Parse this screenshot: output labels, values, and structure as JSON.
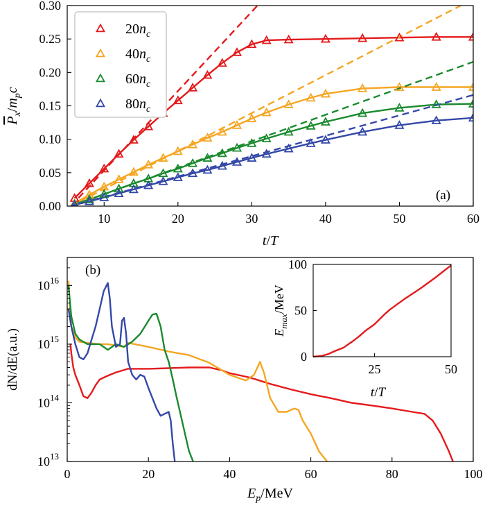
{
  "chart_data": [
    {
      "type": "scatter",
      "panel_label": "(a)",
      "xlabel": "t/T",
      "ylabel": "Px/mpc",
      "xlim": [
        5,
        60
      ],
      "ylim": [
        0,
        0.3
      ],
      "xticks": [
        10,
        20,
        30,
        40,
        50,
        60
      ],
      "yticks": [
        "0.00",
        "0.05",
        "0.10",
        "0.15",
        "0.20",
        "0.25",
        "0.30"
      ],
      "legend_position": "top-left",
      "colors": {
        "20nc": "#e41a1c",
        "40nc": "#f5a623",
        "60nc": "#1a8a2e",
        "80nc": "#3448a8"
      },
      "series": [
        {
          "name": "20nc",
          "label_num": "20",
          "label_sub": "c",
          "color": "#e41a1c",
          "fit_slope": 0.01187,
          "x": [
            6,
            8,
            10,
            12,
            14,
            16,
            18,
            20,
            22,
            24,
            26,
            28,
            30,
            32,
            35,
            40,
            45,
            50,
            55,
            60
          ],
          "y": [
            0.012,
            0.034,
            0.056,
            0.078,
            0.099,
            0.119,
            0.139,
            0.158,
            0.177,
            0.196,
            0.214,
            0.23,
            0.242,
            0.248,
            0.249,
            0.25,
            0.251,
            0.252,
            0.253,
            0.253
          ]
        },
        {
          "name": "40nc",
          "label_num": "40",
          "label_sub": "c",
          "color": "#f5a623",
          "fit_slope": 0.00568,
          "x": [
            6,
            8,
            10,
            12,
            14,
            16,
            18,
            20,
            22,
            24,
            26,
            28,
            30,
            32,
            35,
            38,
            40,
            45,
            50,
            55,
            60
          ],
          "y": [
            0.004,
            0.017,
            0.029,
            0.04,
            0.051,
            0.062,
            0.072,
            0.082,
            0.092,
            0.102,
            0.111,
            0.121,
            0.131,
            0.14,
            0.152,
            0.162,
            0.168,
            0.176,
            0.178,
            0.178,
            0.178
          ]
        },
        {
          "name": "60nc",
          "label_num": "60",
          "label_sub": "c",
          "color": "#1a8a2e",
          "fit_slope": 0.00396,
          "x": [
            6,
            8,
            10,
            12,
            14,
            16,
            18,
            20,
            22,
            24,
            26,
            28,
            30,
            32,
            35,
            38,
            40,
            45,
            50,
            55,
            60
          ],
          "y": [
            0.003,
            0.01,
            0.018,
            0.026,
            0.034,
            0.041,
            0.049,
            0.056,
            0.064,
            0.072,
            0.079,
            0.087,
            0.094,
            0.101,
            0.111,
            0.12,
            0.126,
            0.139,
            0.147,
            0.152,
            0.153
          ]
        },
        {
          "name": "80nc",
          "label_num": "80",
          "label_sub": "c",
          "color": "#3448a8",
          "fit_slope": 0.00305,
          "x": [
            6,
            8,
            10,
            12,
            14,
            16,
            18,
            20,
            22,
            24,
            26,
            28,
            30,
            32,
            35,
            38,
            40,
            45,
            50,
            55,
            60
          ],
          "y": [
            0.002,
            0.007,
            0.013,
            0.019,
            0.025,
            0.031,
            0.037,
            0.043,
            0.049,
            0.054,
            0.06,
            0.066,
            0.072,
            0.078,
            0.086,
            0.094,
            0.099,
            0.111,
            0.121,
            0.128,
            0.132
          ]
        }
      ]
    },
    {
      "type": "line",
      "panel_label": "(b)",
      "xlabel": "Ep/MeV",
      "ylabel": "dN/dE(a.u.)",
      "xlim": [
        0,
        100
      ],
      "ylim": [
        10000000000000.0,
        3e+16
      ],
      "log_y": true,
      "xticks": [
        0,
        20,
        40,
        60,
        80,
        100
      ],
      "yticks_exp": [
        13,
        14,
        15,
        16
      ],
      "series": [
        {
          "name": "20nc",
          "color": "#e41a1c",
          "x": [
            0.8,
            1,
            1.5,
            2,
            3,
            4,
            5,
            6,
            7,
            8,
            10,
            12,
            15,
            20,
            25,
            30,
            35,
            38,
            40,
            45,
            50,
            55,
            60,
            65,
            70,
            75,
            80,
            85,
            88,
            90,
            92,
            94,
            95
          ],
          "y": [
            1000000000000000.0,
            700000000000000.0,
            400000000000000.0,
            300000000000000.0,
            200000000000000.0,
            130000000000000.0,
            120000000000000.0,
            150000000000000.0,
            200000000000000.0,
            250000000000000.0,
            290000000000000.0,
            330000000000000.0,
            380000000000000.0,
            380000000000000.0,
            390000000000000.0,
            400000000000000.0,
            400000000000000.0,
            360000000000000.0,
            320000000000000.0,
            270000000000000.0,
            210000000000000.0,
            170000000000000.0,
            140000000000000.0,
            120000000000000.0,
            100000000000000.0,
            90000000000000.0,
            80000000000000.0,
            70000000000000.0,
            65000000000000.0,
            50000000000000.0,
            30000000000000.0,
            15000000000000.0,
            10000000000000.0
          ]
        },
        {
          "name": "40nc",
          "color": "#f5a623",
          "x": [
            0.3,
            1,
            2,
            3,
            5,
            8,
            10,
            12,
            14,
            15,
            20,
            25,
            30,
            35,
            40,
            44,
            46,
            47.5,
            48.5,
            50,
            52,
            54,
            56,
            57,
            58,
            60,
            62,
            64
          ],
          "y": [
            1.2e+16,
            2000000000000000.0,
            1300000000000000.0,
            1100000000000000.0,
            1050000000000000.0,
            1000000000000000.0,
            1000000000000000.0,
            950000000000000.0,
            900000000000000.0,
            1050000000000000.0,
            900000000000000.0,
            750000000000000.0,
            650000000000000.0,
            480000000000000.0,
            300000000000000.0,
            240000000000000.0,
            300000000000000.0,
            500000000000000.0,
            320000000000000.0,
            120000000000000.0,
            70000000000000.0,
            70000000000000.0,
            80000000000000.0,
            75000000000000.0,
            50000000000000.0,
            30000000000000.0,
            15000000000000.0,
            10000000000000.0
          ]
        },
        {
          "name": "60nc",
          "color": "#1a8a2e",
          "x": [
            0.3,
            1,
            2,
            3,
            5,
            8,
            10,
            12,
            14,
            16,
            18,
            20,
            21,
            22,
            23,
            24,
            25,
            26,
            27,
            28,
            29,
            30,
            31
          ],
          "y": [
            1e+16,
            3000000000000000.0,
            1500000000000000.0,
            1200000000000000.0,
            1000000000000000.0,
            1000000000000000.0,
            800000000000000.0,
            1000000000000000.0,
            900000000000000.0,
            1100000000000000.0,
            1500000000000000.0,
            2500000000000000.0,
            3200000000000000.0,
            3300000000000000.0,
            2000000000000000.0,
            800000000000000.0,
            500000000000000.0,
            250000000000000.0,
            120000000000000.0,
            60000000000000.0,
            30000000000000.0,
            15000000000000.0,
            10000000000000.0
          ]
        },
        {
          "name": "80nc",
          "color": "#3448a8",
          "x": [
            0.3,
            1,
            2,
            3,
            4,
            5,
            6,
            7,
            8,
            9,
            10,
            10.5,
            11,
            12,
            13,
            13.5,
            14,
            14.5,
            15,
            16,
            17,
            18,
            19,
            20,
            22,
            23,
            24,
            25,
            25.5,
            26,
            26.5
          ],
          "y": [
            4000000000000000.0,
            2000000000000000.0,
            1000000000000000.0,
            600000000000000.0,
            550000000000000.0,
            700000000000000.0,
            1200000000000000.0,
            2000000000000000.0,
            4000000000000000.0,
            8000000000000000.0,
            1.1e+16,
            6000000000000000.0,
            2000000000000000.0,
            900000000000000.0,
            1000000000000000.0,
            2500000000000000.0,
            2800000000000000.0,
            1500000000000000.0,
            500000000000000.0,
            300000000000000.0,
            250000000000000.0,
            300000000000000.0,
            280000000000000.0,
            180000000000000.0,
            80000000000000.0,
            60000000000000.0,
            65000000000000.0,
            70000000000000.0,
            50000000000000.0,
            20000000000000.0,
            10000000000000.0
          ]
        }
      ]
    },
    {
      "type": "line",
      "inset": true,
      "xlabel": "t/T",
      "ylabel": "Emax/MeV",
      "xlim": [
        5,
        50
      ],
      "ylim": [
        0,
        100
      ],
      "xticks": [
        25,
        50
      ],
      "yticks": [
        0,
        50,
        100
      ],
      "series": [
        {
          "name": "Emax",
          "color": "#e41a1c",
          "x": [
            5,
            8,
            10,
            12,
            15,
            18,
            20,
            22,
            25,
            28,
            30,
            35,
            40,
            45,
            50
          ],
          "y": [
            0,
            1,
            3,
            6,
            10,
            17,
            22,
            28,
            35,
            45,
            51,
            63,
            74,
            86,
            99
          ]
        }
      ]
    }
  ]
}
